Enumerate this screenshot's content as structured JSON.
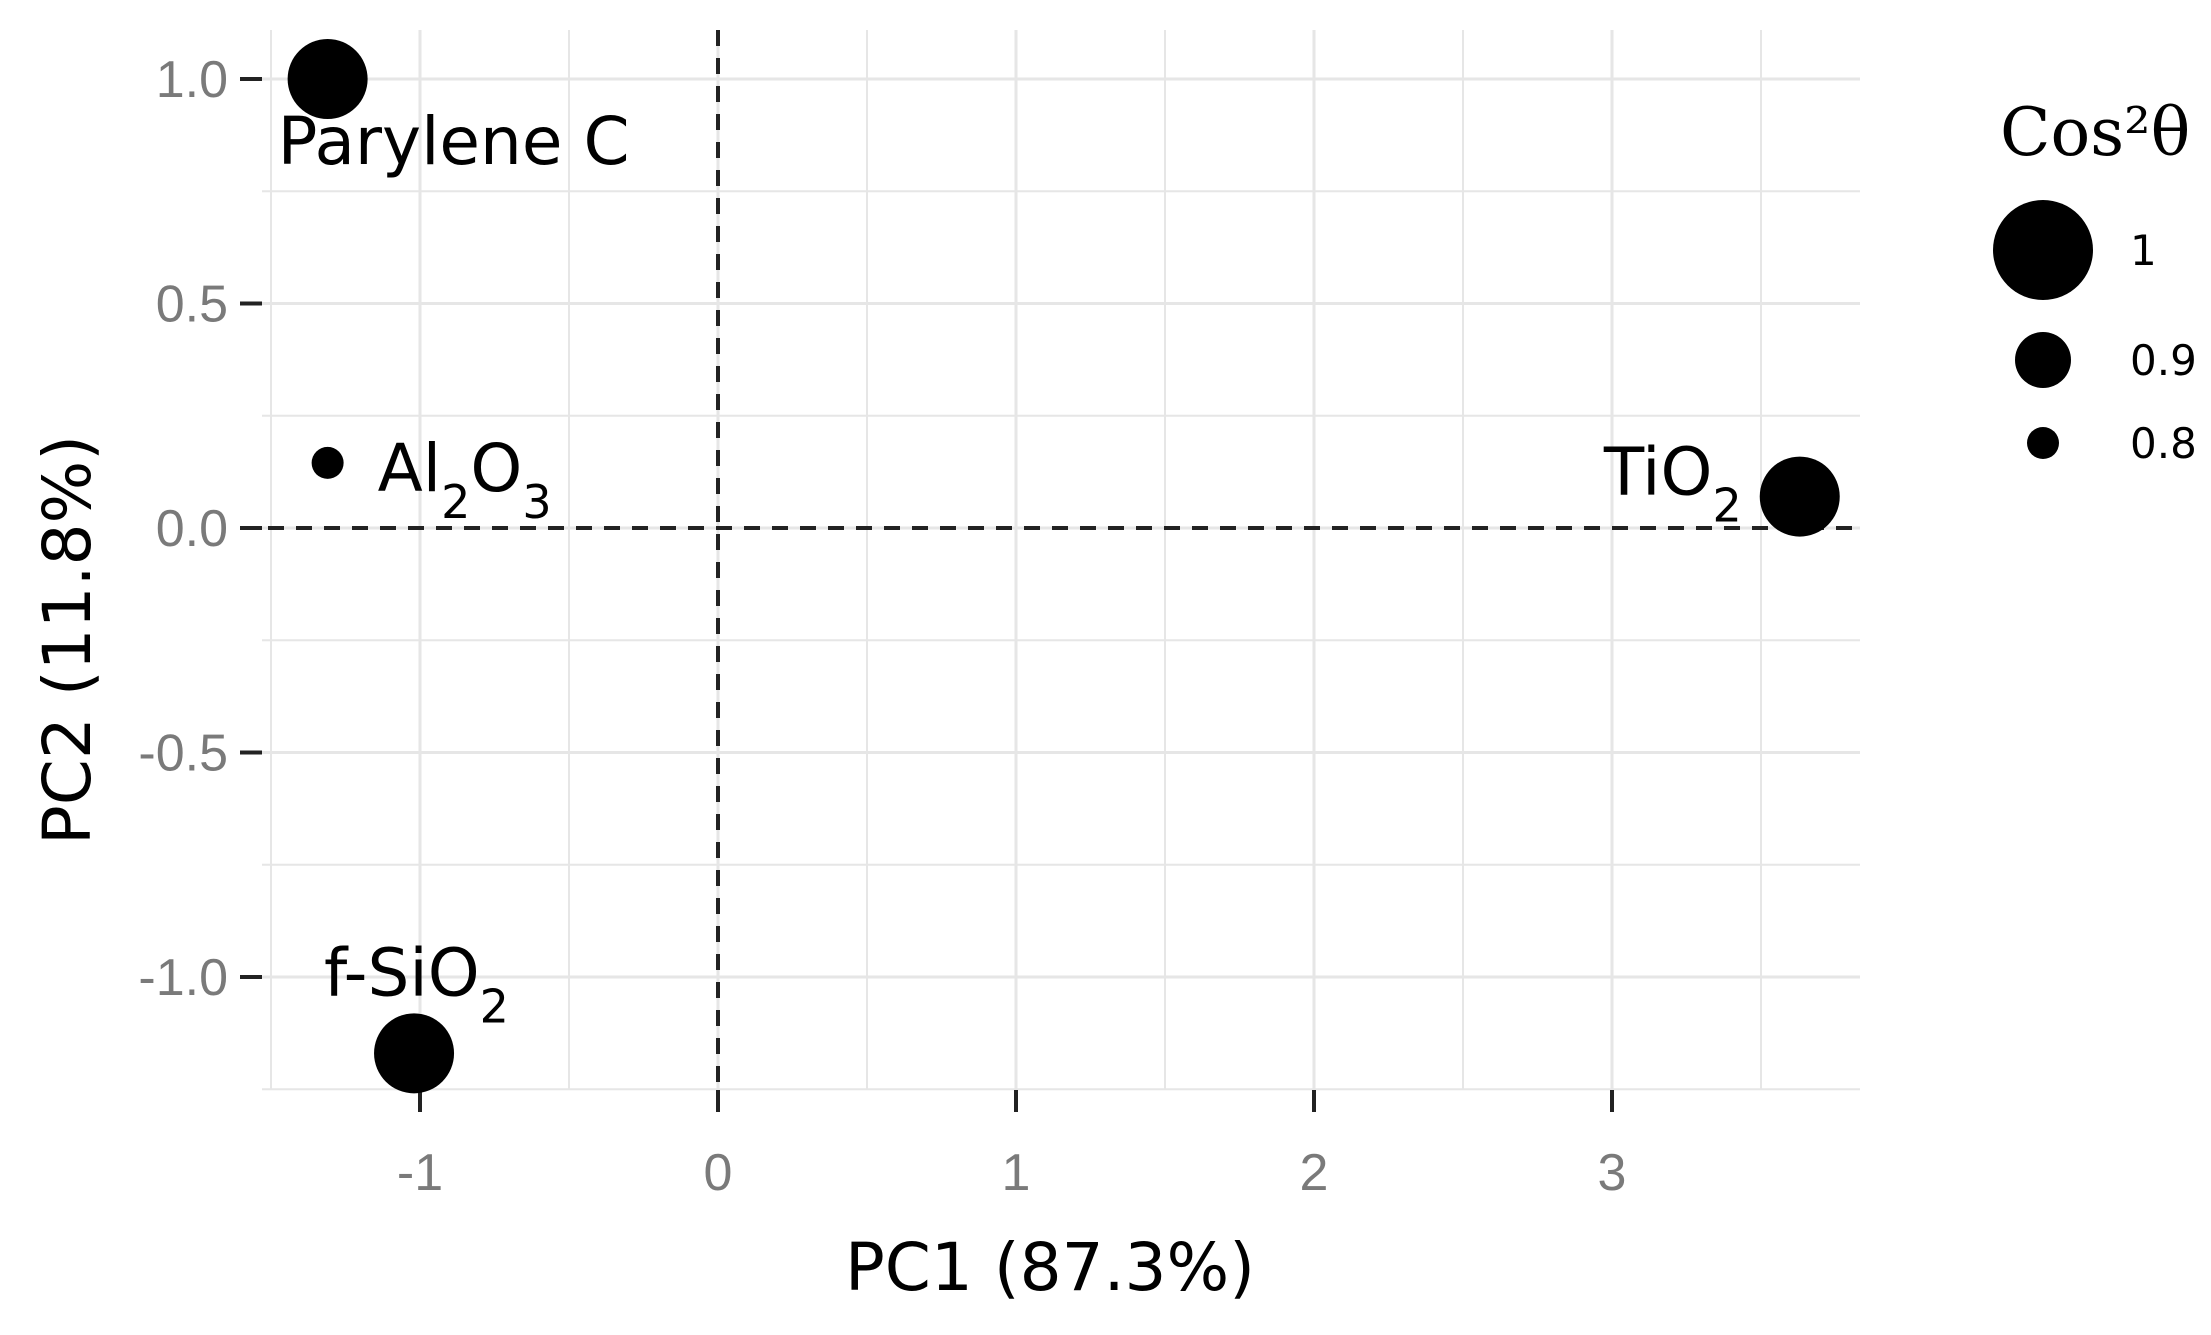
{
  "chart_data": {
    "type": "scatter",
    "xlabel": "PC1 (87.3%)",
    "ylabel": "PC2 (11.8%)",
    "xlim": [
      -1.5,
      3.8
    ],
    "ylim": [
      -1.25,
      1.1
    ],
    "x_ticks": [
      -1,
      0,
      1,
      2,
      3
    ],
    "x_tick_labels": [
      "-1",
      "0",
      "1",
      "2",
      "3"
    ],
    "y_ticks": [
      -1.0,
      -0.5,
      0.0,
      0.5,
      1.0
    ],
    "y_tick_labels": [
      "-1.0",
      "-0.5",
      "0.0",
      "0.5",
      "1.0"
    ],
    "grid": true,
    "reference_lines": {
      "x": 0,
      "y": 0,
      "style": "dashed"
    },
    "points": [
      {
        "label_main": "Parylene C",
        "label_sub": "",
        "label_tail": "",
        "x": -1.31,
        "y": 1.0,
        "cos2": 1.0
      },
      {
        "label_main": "Al",
        "label_sub": "2",
        "label_mid": "O",
        "label_sub2": "3",
        "x": -1.31,
        "y": 0.145,
        "cos2": 0.8
      },
      {
        "label_main": "TiO",
        "label_sub": "2",
        "label_tail": "",
        "x": 3.63,
        "y": 0.07,
        "cos2": 1.0
      },
      {
        "label_main": "f-SiO",
        "label_sub": "2",
        "label_tail": "",
        "x": -1.02,
        "y": -1.17,
        "cos2": 1.0
      }
    ],
    "legend": {
      "title_main": "Cos²θ",
      "position": "right",
      "entries": [
        {
          "label": "1",
          "value": 1.0
        },
        {
          "label": "0.9",
          "value": 0.9
        },
        {
          "label": "0.8",
          "value": 0.8
        }
      ]
    },
    "colors": {
      "point": "#000000",
      "grid": "#e6e6e6",
      "ref_line": "#222222",
      "tick_text": "#7a7a7a"
    }
  }
}
